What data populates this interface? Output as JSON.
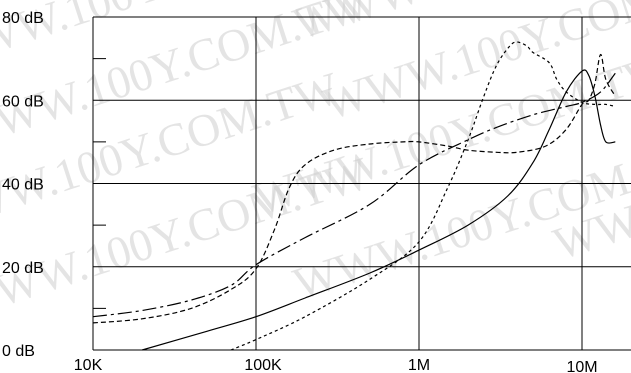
{
  "chart_data": {
    "type": "line",
    "x_scale": "log",
    "y_scale": "linear",
    "xlim": [
      10000,
      16000000
    ],
    "ylim": [
      0,
      80
    ],
    "grid": true,
    "x_ticks": [
      {
        "value": 10000,
        "label": "10K"
      },
      {
        "value": 100000,
        "label": "100K"
      },
      {
        "value": 1000000,
        "label": "1M"
      },
      {
        "value": 10000000,
        "label": "10M"
      }
    ],
    "y_ticks": [
      {
        "value": 0,
        "label": "0 dB"
      },
      {
        "value": 20,
        "label": "20 dB"
      },
      {
        "value": 40,
        "label": "40 dB"
      },
      {
        "value": 60,
        "label": "60 dB"
      },
      {
        "value": 80,
        "label": "80 dB"
      }
    ],
    "y_minor_ticks": [
      10,
      30,
      50,
      70
    ],
    "series": [
      {
        "style": "solid",
        "points": [
          [
            20000,
            0
          ],
          [
            50000,
            4.5
          ],
          [
            100000,
            8
          ],
          [
            200000,
            12.5
          ],
          [
            500000,
            18.5
          ],
          [
            1000000,
            24
          ],
          [
            2000000,
            30
          ],
          [
            3500000,
            37
          ],
          [
            5000000,
            45
          ],
          [
            6300000,
            53
          ],
          [
            8000000,
            62
          ],
          [
            10000000,
            67
          ],
          [
            11000000,
            66
          ],
          [
            12000000,
            61
          ],
          [
            13000000,
            54
          ],
          [
            14000000,
            50
          ],
          [
            16000000,
            50
          ]
        ]
      },
      {
        "style": "dash",
        "points": [
          [
            10000,
            6.5
          ],
          [
            20000,
            7.5
          ],
          [
            40000,
            10
          ],
          [
            70000,
            14.5
          ],
          [
            100000,
            19.5
          ],
          [
            130000,
            29
          ],
          [
            160000,
            39
          ],
          [
            200000,
            44.5
          ],
          [
            300000,
            48
          ],
          [
            500000,
            49.5
          ],
          [
            800000,
            50
          ],
          [
            1000000,
            50
          ],
          [
            1500000,
            49
          ],
          [
            2000000,
            48
          ],
          [
            3000000,
            47.5
          ],
          [
            4000000,
            47.5
          ],
          [
            6000000,
            49
          ],
          [
            8000000,
            53
          ],
          [
            10000000,
            59
          ],
          [
            11000000,
            60
          ],
          [
            12000000,
            64
          ],
          [
            13000000,
            71
          ],
          [
            14000000,
            65
          ],
          [
            16000000,
            61
          ]
        ]
      },
      {
        "style": "dashdot",
        "points": [
          [
            10000,
            8
          ],
          [
            20000,
            9.5
          ],
          [
            40000,
            12
          ],
          [
            70000,
            15.5
          ],
          [
            100000,
            20.5
          ],
          [
            200000,
            27
          ],
          [
            500000,
            35
          ],
          [
            1000000,
            44.5
          ],
          [
            2000000,
            50.5
          ],
          [
            3000000,
            53.5
          ],
          [
            5000000,
            56.5
          ],
          [
            8000000,
            58.5
          ],
          [
            10000000,
            59.5
          ],
          [
            13000000,
            62
          ],
          [
            16000000,
            66.5
          ]
        ]
      },
      {
        "style": "shortdash",
        "points": [
          [
            70000,
            0
          ],
          [
            100000,
            2.5
          ],
          [
            200000,
            8
          ],
          [
            500000,
            17
          ],
          [
            1000000,
            26
          ],
          [
            1500000,
            39
          ],
          [
            2000000,
            50.5
          ],
          [
            2500000,
            61
          ],
          [
            3000000,
            68.5
          ],
          [
            3600000,
            73
          ],
          [
            4000000,
            74
          ],
          [
            4600000,
            73
          ],
          [
            5000000,
            71.5
          ],
          [
            6300000,
            69
          ],
          [
            7000000,
            65
          ],
          [
            8000000,
            62
          ],
          [
            10000000,
            59.5
          ],
          [
            12000000,
            59
          ],
          [
            14000000,
            59
          ],
          [
            16000000,
            58.5
          ]
        ]
      }
    ]
  },
  "watermark": {
    "text": "WWW.100Y.COM.TW"
  },
  "colors": {
    "line": "#000000",
    "grid": "#000000",
    "watermark": "#cfcfcf"
  }
}
